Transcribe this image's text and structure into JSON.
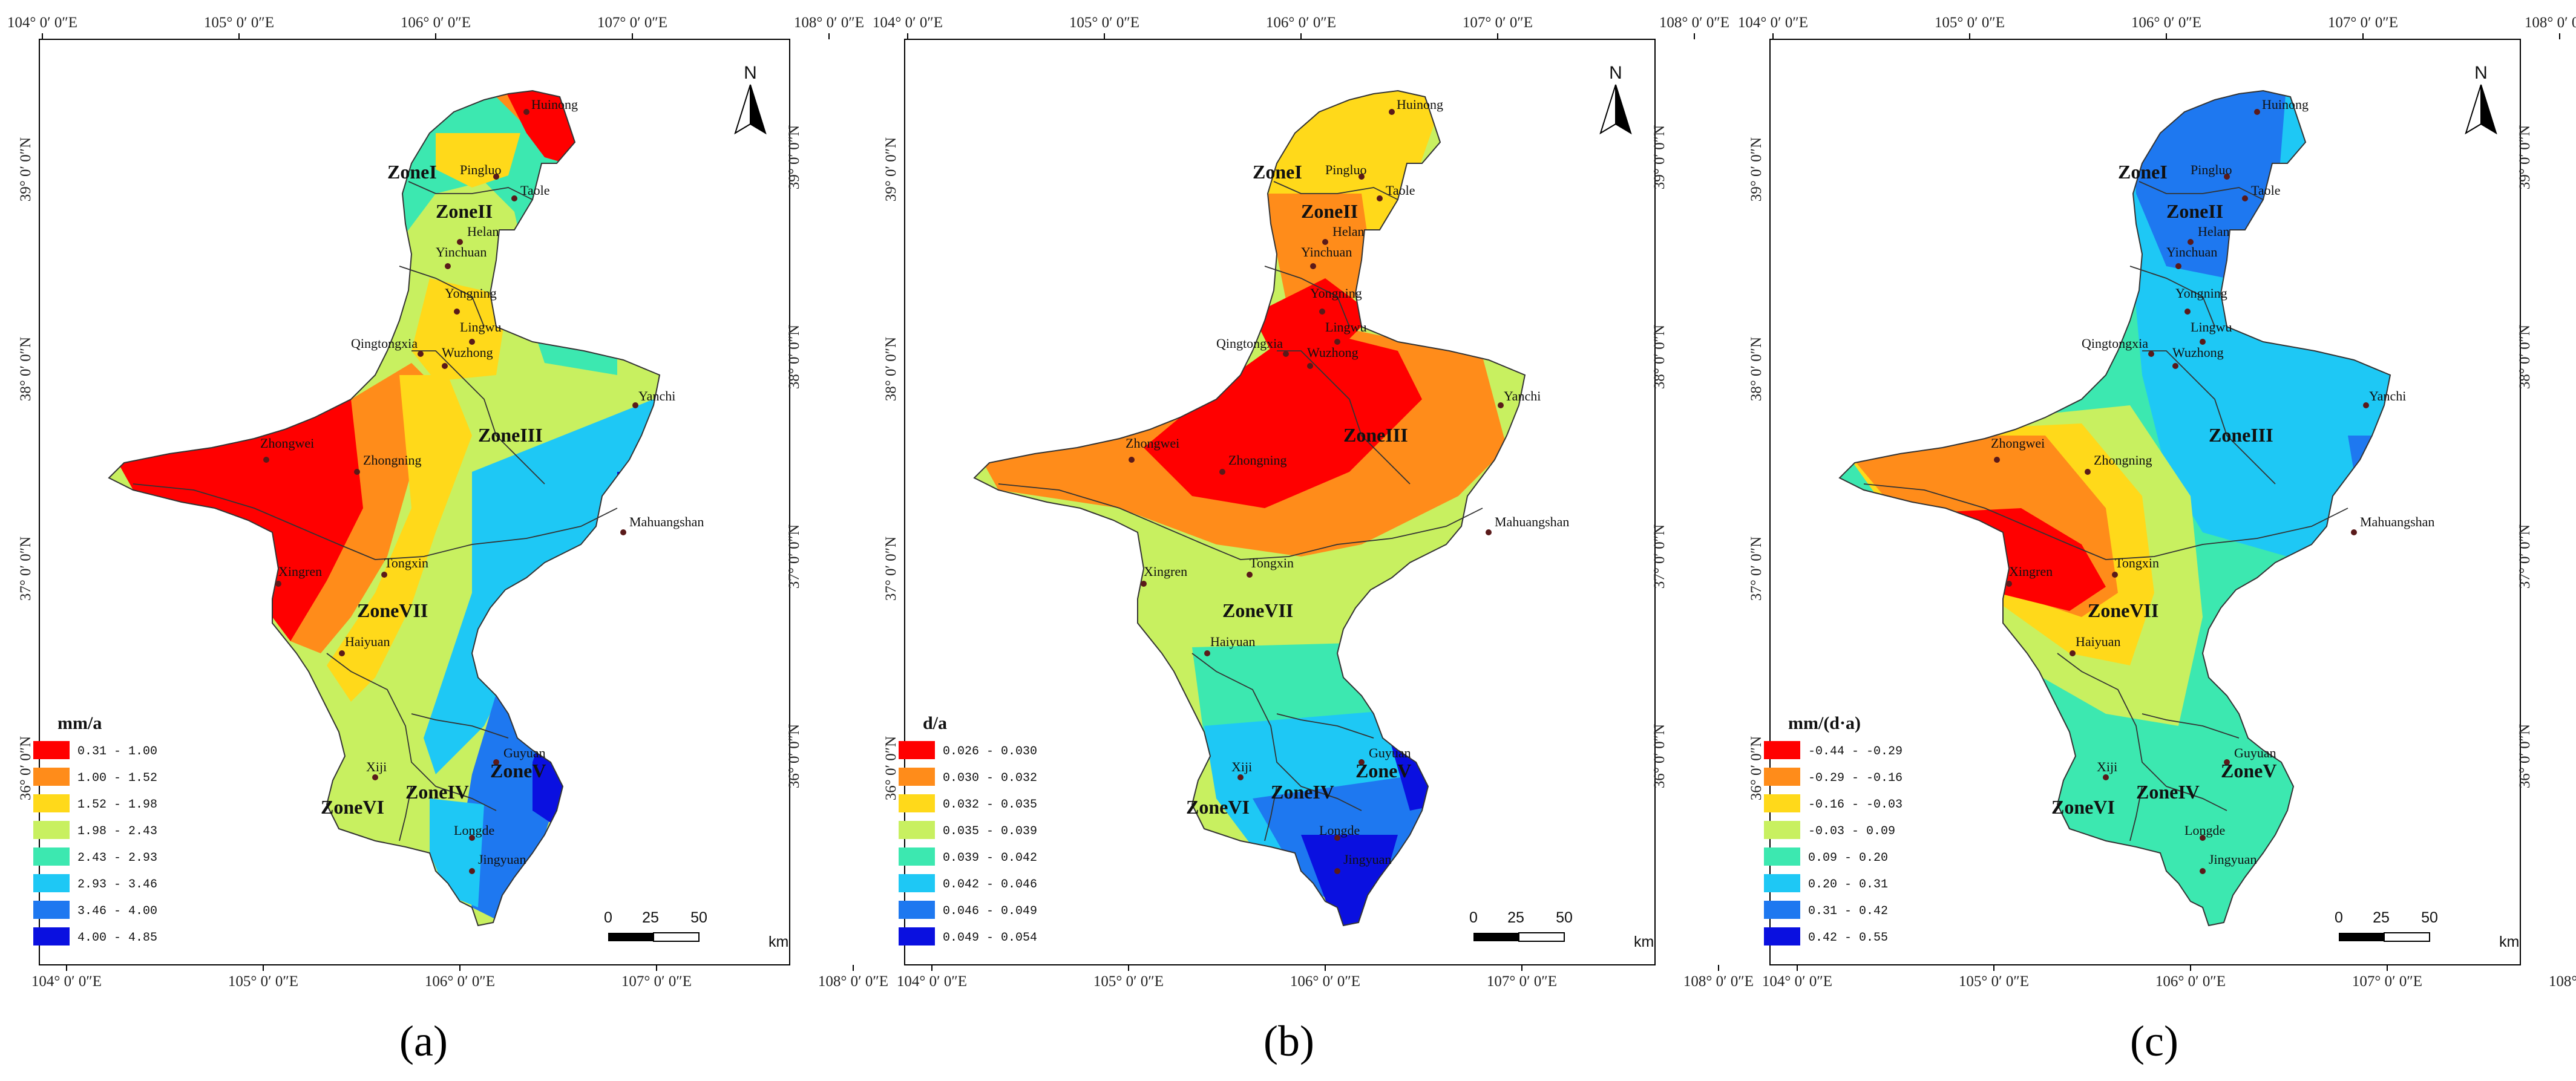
{
  "lon_ticks": [
    "104° 0′ 0″E",
    "105° 0′ 0″E",
    "106° 0′ 0″E",
    "107° 0′ 0″E",
    "108° 0′ 0″E"
  ],
  "lat_ticks": [
    "39° 0′ 0″N",
    "38° 0′ 0″N",
    "37° 0′ 0″N",
    "36° 0′ 0″N"
  ],
  "north_label": "N",
  "scale": {
    "labels": [
      "0",
      "25",
      "50"
    ],
    "unit": "km"
  },
  "zones": [
    "ZoneI",
    "ZoneII",
    "ZoneIII",
    "ZoneIV",
    "ZoneV",
    "ZoneVI",
    "ZoneVII"
  ],
  "cities": [
    "Huinong",
    "Pingluo",
    "Taole",
    "Helan",
    "Yinchuan",
    "Yongning",
    "Lingwu",
    "Qingtongxia",
    "Wuzhong",
    "Yanchi",
    "Zhongwei",
    "Zhongning",
    "Mahuangshan",
    "Tongxin",
    "Xingren",
    "Haiyuan",
    "Guyuan",
    "Xiji",
    "Longde",
    "Jingyuan"
  ],
  "panels": [
    {
      "label": "(a)",
      "legend_title": "mm/a",
      "colors": [
        "#ff0000",
        "#ff8c1a",
        "#ffd91a",
        "#c8f060",
        "#3ce8b0",
        "#1ec8f5",
        "#1e78f0",
        "#0a10e0"
      ],
      "classes": [
        "0.31 - 1.00",
        "1.00 - 1.52",
        "1.52 - 1.98",
        "1.98 - 2.43",
        "2.43 - 2.93",
        "2.93 - 3.46",
        "3.46 - 4.00",
        "4.00 - 4.85"
      ]
    },
    {
      "label": "(b)",
      "legend_title": "d/a",
      "colors": [
        "#ff0000",
        "#ff8c1a",
        "#ffd91a",
        "#c8f060",
        "#3ce8b0",
        "#1ec8f5",
        "#1e78f0",
        "#0a10e0"
      ],
      "classes": [
        "0.026 - 0.030",
        "0.030 - 0.032",
        "0.032 - 0.035",
        "0.035 - 0.039",
        "0.039 - 0.042",
        "0.042 - 0.046",
        "0.046 - 0.049",
        "0.049 - 0.054"
      ]
    },
    {
      "label": "(c)",
      "legend_title": "mm/(d·a)",
      "colors": [
        "#ff0000",
        "#ff8c1a",
        "#ffd91a",
        "#c8f060",
        "#3ce8b0",
        "#1ec8f5",
        "#1e78f0",
        "#0a10e0"
      ],
      "classes": [
        "-0.44 - -0.29",
        "-0.29 - -0.16",
        "-0.16 - -0.03",
        "-0.03 - 0.09",
        "0.09 - 0.20",
        "0.20 - 0.31",
        "0.31 - 0.42",
        "0.42 - 0.55"
      ]
    }
  ]
}
